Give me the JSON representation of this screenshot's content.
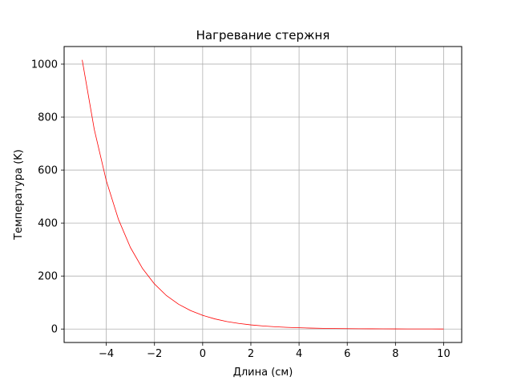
{
  "chart_data": {
    "type": "line",
    "title": "Нагревание стержня",
    "xlabel": "Длина (см)",
    "ylabel": "Температура (K)",
    "xlim": [
      -5.75,
      10.75
    ],
    "ylim": [
      -50.8,
      1066.5
    ],
    "grid": true,
    "xticks": [
      -4,
      -2,
      0,
      2,
      4,
      6,
      8,
      10
    ],
    "xtick_labels": [
      "−4",
      "−2",
      "0",
      "2",
      "4",
      "6",
      "8",
      "10"
    ],
    "yticks": [
      0,
      200,
      400,
      600,
      800,
      1000
    ],
    "ytick_labels": [
      "0",
      "200",
      "400",
      "600",
      "800",
      "1000"
    ],
    "series": [
      {
        "color": "#ff0000",
        "x": [
          -5,
          -4.5,
          -4,
          -3.5,
          -3,
          -2.5,
          -2,
          -1.5,
          -1,
          -0.5,
          0,
          0.5,
          1,
          1.5,
          2,
          2.5,
          3,
          3.5,
          4,
          4.5,
          5,
          5.5,
          6,
          6.5,
          7,
          7.5,
          8,
          8.5,
          9,
          9.5,
          10
        ],
        "y": [
          1016,
          754,
          560,
          415,
          308,
          229,
          170,
          126,
          93.6,
          69.5,
          51.6,
          38.3,
          28.4,
          21.1,
          15.6,
          11.6,
          8.6,
          6.4,
          4.8,
          3.5,
          2.6,
          1.9,
          1.4,
          1.1,
          0.8,
          0.6,
          0.45,
          0.33,
          0.25,
          0.18,
          0.14
        ]
      }
    ]
  }
}
